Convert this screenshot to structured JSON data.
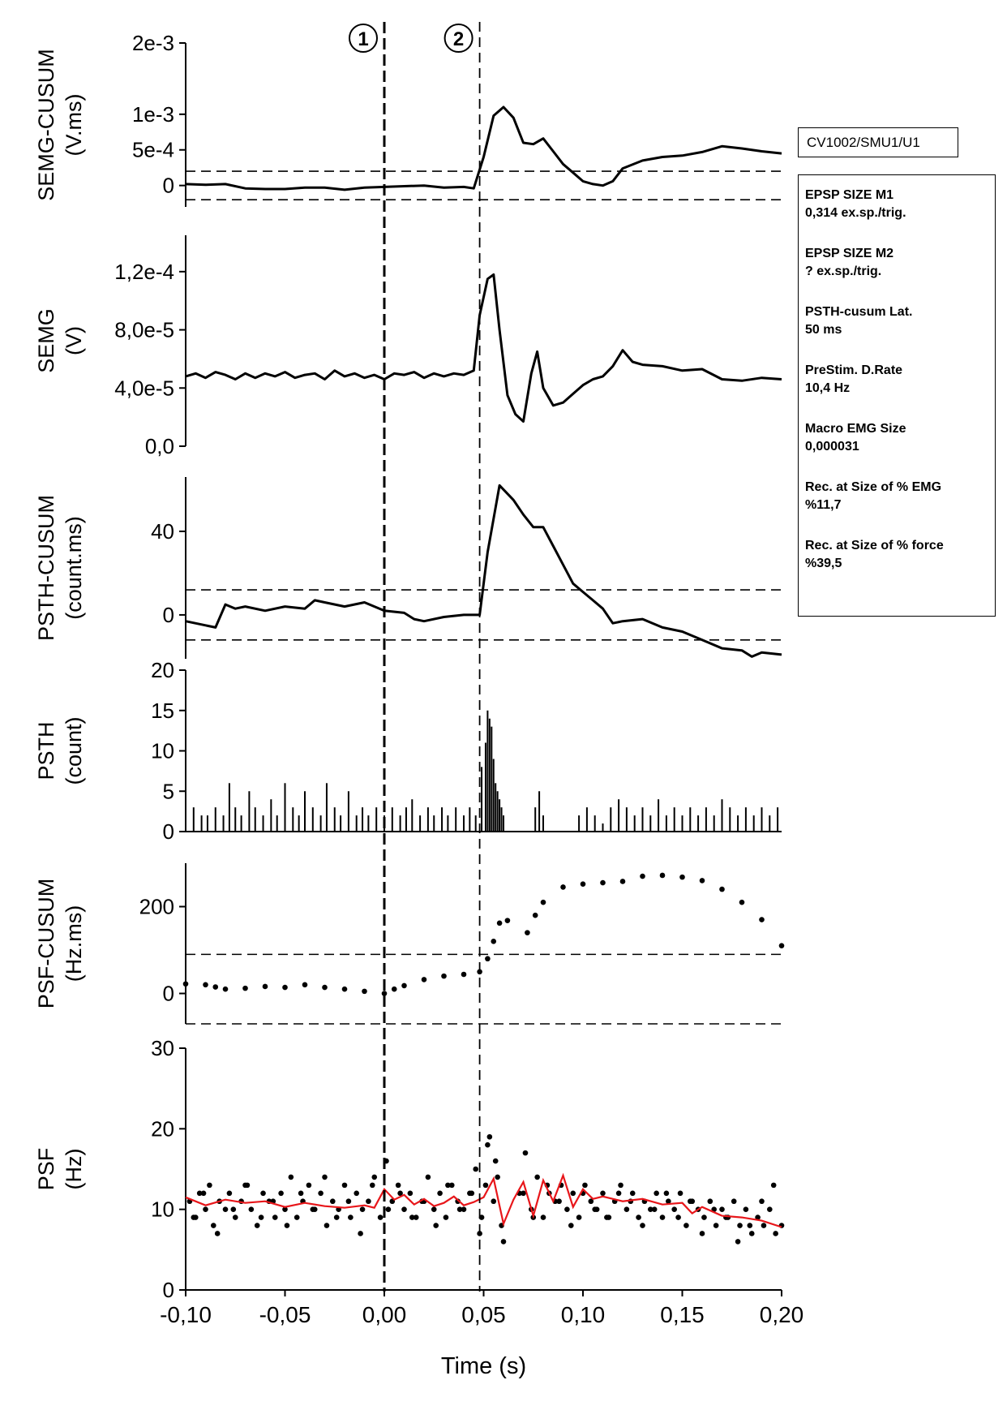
{
  "recording_id": "CV1002/SMU1/U1",
  "markers": [
    {
      "label": "1",
      "x": 0.0
    },
    {
      "label": "2",
      "x": 0.048
    }
  ],
  "info": [
    {
      "title": "EPSP SIZE M1",
      "value": "0,314 ex.sp./trig."
    },
    {
      "title": "EPSP SIZE M2",
      "value": "? ex.sp./trig."
    },
    {
      "title": "PSTH-cusum Lat.",
      "value": "50 ms"
    },
    {
      "title": "PreStim. D.Rate",
      "value": "10,4 Hz"
    },
    {
      "title": "Macro EMG Size",
      "value": "0,000031"
    },
    {
      "title": "Rec. at Size of % EMG",
      "value": "%11,7"
    },
    {
      "title": "Rec. at Size of % force",
      "value": "%39,5"
    }
  ],
  "chart_data": [
    {
      "type": "line",
      "ylabel": [
        "SEMG-CUSUM",
        "(V.ms)"
      ],
      "ylim": [
        -0.0003,
        0.002
      ],
      "yticks": [
        0,
        0.0005,
        0.001,
        0.002
      ],
      "yticklabels": [
        "0",
        "5e-4",
        "1e-3",
        "2e-3"
      ],
      "thresholds": [
        0.0002,
        -0.0002
      ],
      "x": [
        -0.1,
        -0.09,
        -0.08,
        -0.07,
        -0.06,
        -0.05,
        -0.04,
        -0.03,
        -0.02,
        -0.01,
        0.0,
        0.01,
        0.02,
        0.03,
        0.04,
        0.045,
        0.05,
        0.055,
        0.06,
        0.065,
        0.07,
        0.075,
        0.08,
        0.085,
        0.09,
        0.095,
        0.1,
        0.105,
        0.11,
        0.115,
        0.12,
        0.13,
        0.14,
        0.15,
        0.16,
        0.17,
        0.18,
        0.19,
        0.2
      ],
      "y": [
        2e-05,
        1e-05,
        2e-05,
        -4e-05,
        -5e-05,
        -5e-05,
        -3e-05,
        -3e-05,
        -6e-05,
        -3e-05,
        -2e-05,
        -1e-05,
        0.0,
        -3e-05,
        -2e-05,
        -4e-05,
        0.0004,
        0.00098,
        0.0011,
        0.00095,
        0.0006,
        0.00058,
        0.00066,
        0.00048,
        0.0003,
        0.00018,
        6e-05,
        2e-05,
        0.0,
        6e-05,
        0.00024,
        0.00035,
        0.0004,
        0.00042,
        0.00047,
        0.00055,
        0.00052,
        0.00048,
        0.00045
      ]
    },
    {
      "type": "line",
      "ylabel": [
        "SEMG",
        "(V)"
      ],
      "ylim": [
        0,
        0.000145
      ],
      "yticks": [
        0,
        4e-05,
        8e-05,
        0.00012
      ],
      "yticklabels": [
        "0,0",
        "4,0e-5",
        "8,0e-5",
        "1,2e-4"
      ],
      "x": [
        -0.1,
        -0.095,
        -0.09,
        -0.085,
        -0.08,
        -0.075,
        -0.07,
        -0.065,
        -0.06,
        -0.055,
        -0.05,
        -0.045,
        -0.04,
        -0.035,
        -0.03,
        -0.025,
        -0.02,
        -0.015,
        -0.01,
        -0.005,
        0.0,
        0.005,
        0.01,
        0.015,
        0.02,
        0.025,
        0.03,
        0.035,
        0.04,
        0.045,
        0.048,
        0.052,
        0.055,
        0.058,
        0.062,
        0.066,
        0.07,
        0.074,
        0.077,
        0.08,
        0.085,
        0.09,
        0.095,
        0.1,
        0.105,
        0.11,
        0.115,
        0.12,
        0.125,
        0.13,
        0.14,
        0.15,
        0.16,
        0.17,
        0.18,
        0.19,
        0.2
      ],
      "y": [
        4.8e-05,
        5e-05,
        4.7e-05,
        5.1e-05,
        4.9e-05,
        4.6e-05,
        5e-05,
        4.7e-05,
        5e-05,
        4.8e-05,
        5.1e-05,
        4.7e-05,
        4.9e-05,
        5e-05,
        4.6e-05,
        5.2e-05,
        4.8e-05,
        5e-05,
        4.7e-05,
        4.9e-05,
        4.6e-05,
        5e-05,
        4.9e-05,
        5.1e-05,
        4.7e-05,
        5e-05,
        4.8e-05,
        5e-05,
        4.9e-05,
        5.2e-05,
        9e-05,
        0.000115,
        0.000118,
        8e-05,
        3.5e-05,
        2.2e-05,
        1.7e-05,
        5e-05,
        6.5e-05,
        4e-05,
        2.8e-05,
        3e-05,
        3.6e-05,
        4.2e-05,
        4.6e-05,
        4.8e-05,
        5.5e-05,
        6.6e-05,
        5.8e-05,
        5.6e-05,
        5.5e-05,
        5.2e-05,
        5.3e-05,
        4.6e-05,
        4.5e-05,
        4.7e-05,
        4.6e-05
      ]
    },
    {
      "type": "line",
      "ylabel": [
        "PSTH-CUSUM",
        "(count.ms)"
      ],
      "ylim": [
        -21,
        66
      ],
      "yticks": [
        0,
        40
      ],
      "yticklabels": [
        "0",
        "40"
      ],
      "thresholds": [
        12,
        -12
      ],
      "x": [
        -0.1,
        -0.09,
        -0.085,
        -0.08,
        -0.075,
        -0.07,
        -0.06,
        -0.05,
        -0.04,
        -0.035,
        -0.03,
        -0.02,
        -0.01,
        0.0,
        0.01,
        0.015,
        0.02,
        0.03,
        0.04,
        0.048,
        0.052,
        0.058,
        0.065,
        0.07,
        0.075,
        0.08,
        0.085,
        0.09,
        0.095,
        0.1,
        0.105,
        0.11,
        0.115,
        0.12,
        0.13,
        0.14,
        0.15,
        0.16,
        0.17,
        0.18,
        0.185,
        0.19,
        0.2
      ],
      "y": [
        -3,
        -5,
        -6,
        5,
        3,
        4,
        2,
        4,
        3,
        7,
        6,
        4,
        6,
        2,
        1,
        -2,
        -3,
        -1,
        0,
        0,
        30,
        62,
        55,
        48,
        42,
        42,
        33,
        24,
        15,
        11,
        7,
        3,
        -4,
        -3,
        -2,
        -6,
        -8,
        -12,
        -16,
        -17,
        -20,
        -18,
        -19
      ]
    },
    {
      "type": "bar",
      "ylabel": [
        "PSTH",
        "(count)"
      ],
      "ylim": [
        0,
        20
      ],
      "yticks": [
        0,
        5,
        10,
        15,
        20
      ],
      "yticklabels": [
        "0",
        "5",
        "10",
        "15",
        "20"
      ],
      "x": [
        -0.096,
        -0.092,
        -0.089,
        -0.085,
        -0.081,
        -0.078,
        -0.075,
        -0.072,
        -0.068,
        -0.065,
        -0.061,
        -0.057,
        -0.054,
        -0.05,
        -0.046,
        -0.043,
        -0.04,
        -0.036,
        -0.032,
        -0.029,
        -0.025,
        -0.022,
        -0.018,
        -0.014,
        -0.011,
        -0.008,
        -0.004,
        0.0,
        0.004,
        0.008,
        0.011,
        0.014,
        0.018,
        0.022,
        0.025,
        0.029,
        0.032,
        0.036,
        0.04,
        0.043,
        0.046,
        0.049,
        0.051,
        0.052,
        0.053,
        0.054,
        0.055,
        0.056,
        0.057,
        0.058,
        0.059,
        0.06,
        0.076,
        0.078,
        0.08,
        0.098,
        0.102,
        0.106,
        0.11,
        0.114,
        0.118,
        0.122,
        0.126,
        0.13,
        0.134,
        0.138,
        0.142,
        0.146,
        0.15,
        0.154,
        0.158,
        0.162,
        0.166,
        0.17,
        0.174,
        0.178,
        0.182,
        0.186,
        0.19,
        0.194,
        0.198
      ],
      "y": [
        3,
        2,
        2,
        3,
        2,
        6,
        3,
        2,
        5,
        3,
        2,
        4,
        2,
        6,
        3,
        2,
        5,
        3,
        2,
        6,
        3,
        2,
        5,
        2,
        3,
        2,
        3,
        2,
        3,
        2,
        3,
        4,
        2,
        3,
        2,
        3,
        2,
        3,
        2,
        3,
        2,
        8,
        11,
        15,
        14,
        13,
        9,
        6,
        5,
        4,
        3,
        2,
        3,
        5,
        2,
        2,
        3,
        2,
        1,
        3,
        4,
        3,
        2,
        3,
        2,
        4,
        2,
        3,
        2,
        3,
        2,
        3,
        2,
        4,
        3,
        2,
        3,
        2,
        3,
        2,
        3
      ]
    },
    {
      "type": "scatter",
      "ylabel": [
        "PSF-CUSUM",
        "(Hz.ms)"
      ],
      "ylim": [
        -70,
        300
      ],
      "yticks": [
        0,
        200
      ],
      "yticklabels": [
        "0",
        "200"
      ],
      "thresholds": [
        90,
        -70
      ],
      "x": [
        -0.1,
        -0.09,
        -0.085,
        -0.08,
        -0.07,
        -0.06,
        -0.05,
        -0.04,
        -0.03,
        -0.02,
        -0.01,
        0.0,
        0.005,
        0.01,
        0.02,
        0.03,
        0.04,
        0.048,
        0.052,
        0.055,
        0.058,
        0.062,
        0.072,
        0.076,
        0.08,
        0.09,
        0.1,
        0.11,
        0.12,
        0.13,
        0.14,
        0.15,
        0.16,
        0.17,
        0.18,
        0.19,
        0.2
      ],
      "y": [
        22,
        20,
        15,
        10,
        12,
        16,
        14,
        20,
        14,
        10,
        5,
        0,
        10,
        18,
        32,
        40,
        44,
        50,
        80,
        120,
        162,
        168,
        140,
        180,
        210,
        245,
        252,
        255,
        258,
        270,
        272,
        268,
        260,
        240,
        210,
        170,
        110
      ]
    },
    {
      "type": "scatter",
      "ylabel": [
        "PSF",
        "(Hz)"
      ],
      "ylim": [
        0,
        30
      ],
      "yticks": [
        0,
        10,
        20,
        30
      ],
      "yticklabels": [
        "0",
        "10",
        "20",
        "30"
      ],
      "trend": {
        "color": "#e8161a",
        "x": [
          -0.1,
          -0.09,
          -0.08,
          -0.07,
          -0.06,
          -0.05,
          -0.04,
          -0.03,
          -0.02,
          -0.01,
          -0.005,
          0.0,
          0.005,
          0.01,
          0.015,
          0.02,
          0.025,
          0.03,
          0.035,
          0.04,
          0.045,
          0.05,
          0.055,
          0.06,
          0.065,
          0.07,
          0.075,
          0.08,
          0.085,
          0.09,
          0.095,
          0.1,
          0.105,
          0.11,
          0.12,
          0.13,
          0.14,
          0.15,
          0.155,
          0.16,
          0.17,
          0.18,
          0.19,
          0.2
        ],
        "y": [
          11.5,
          10.5,
          11.2,
          10.8,
          11.0,
          10.3,
          10.8,
          10.4,
          10.2,
          10.5,
          10.2,
          12.5,
          11.2,
          11.8,
          10.6,
          11.3,
          10.4,
          10.8,
          11.6,
          10.5,
          10.9,
          11.5,
          13.8,
          8.2,
          11.2,
          13.4,
          9.2,
          13.6,
          11.0,
          14.2,
          10.3,
          12.5,
          11.3,
          11.6,
          11.0,
          11.3,
          10.6,
          10.8,
          9.5,
          10.3,
          9.2,
          9.0,
          8.6,
          7.8
        ]
      },
      "x": [
        -0.098,
        -0.095,
        -0.093,
        -0.09,
        -0.088,
        -0.086,
        -0.083,
        -0.08,
        -0.078,
        -0.075,
        -0.072,
        -0.07,
        -0.067,
        -0.064,
        -0.061,
        -0.058,
        -0.055,
        -0.052,
        -0.05,
        -0.047,
        -0.044,
        -0.041,
        -0.038,
        -0.035,
        -0.032,
        -0.029,
        -0.026,
        -0.023,
        -0.02,
        -0.017,
        -0.014,
        -0.011,
        -0.008,
        -0.005,
        -0.002,
        0.001,
        0.004,
        0.007,
        0.01,
        0.013,
        0.016,
        0.019,
        0.022,
        0.025,
        0.028,
        0.031,
        0.034,
        0.037,
        0.04,
        0.043,
        0.046,
        0.049,
        0.051,
        0.053,
        0.055,
        0.057,
        0.059,
        0.068,
        0.071,
        0.074,
        0.077,
        0.08,
        0.083,
        0.086,
        0.089,
        0.092,
        0.095,
        0.098,
        0.101,
        0.104,
        0.107,
        0.11,
        0.113,
        0.116,
        0.119,
        0.122,
        0.125,
        0.128,
        0.131,
        0.134,
        0.137,
        0.14,
        0.143,
        0.146,
        0.149,
        0.152,
        0.155,
        0.158,
        0.161,
        0.164,
        0.167,
        0.17,
        0.173,
        0.176,
        0.179,
        0.182,
        0.185,
        0.188,
        0.191,
        0.194,
        0.197,
        0.2,
        -0.096,
        -0.091,
        -0.084,
        -0.076,
        -0.069,
        -0.062,
        -0.056,
        -0.049,
        -0.042,
        -0.036,
        -0.03,
        -0.024,
        -0.018,
        -0.012,
        -0.006,
        0.002,
        0.008,
        0.014,
        0.02,
        0.026,
        0.032,
        0.038,
        0.044,
        0.048,
        0.052,
        0.056,
        0.06,
        0.07,
        0.075,
        0.082,
        0.088,
        0.094,
        0.1,
        0.106,
        0.112,
        0.118,
        0.124,
        0.13,
        0.136,
        0.142,
        0.148,
        0.154,
        0.16,
        0.166,
        0.172,
        0.178,
        0.184,
        0.19,
        0.196
      ],
      "y": [
        11,
        9,
        12,
        10,
        13,
        8,
        11,
        10,
        12,
        9,
        11,
        13,
        10,
        8,
        12,
        11,
        9,
        12,
        10,
        14,
        9,
        11,
        13,
        10,
        12,
        8,
        11,
        10,
        13,
        9,
        12,
        10,
        11,
        14,
        9,
        16,
        11,
        13,
        10,
        12,
        9,
        11,
        14,
        10,
        12,
        9,
        13,
        11,
        10,
        12,
        15,
        9,
        13,
        19,
        11,
        14,
        8,
        12,
        17,
        10,
        14,
        9,
        12,
        11,
        13,
        10,
        12,
        9,
        13,
        11,
        10,
        12,
        9,
        11,
        13,
        10,
        12,
        9,
        11,
        10,
        12,
        9,
        11,
        10,
        12,
        8,
        11,
        10,
        9,
        11,
        8,
        10,
        9,
        11,
        8,
        10,
        7,
        9,
        8,
        10,
        7,
        8,
        9,
        12,
        7,
        10,
        13,
        9,
        11,
        8,
        12,
        10,
        14,
        9,
        11,
        7,
        13,
        10,
        12,
        9,
        11,
        8,
        13,
        10,
        12,
        7,
        18,
        16,
        6,
        12,
        9,
        13,
        11,
        8,
        12,
        10,
        9,
        12,
        11,
        8,
        10,
        12,
        9,
        11,
        7,
        10,
        9,
        6,
        8,
        11,
        13
      ]
    }
  ],
  "xaxis": {
    "label": "Time (s)",
    "lim": [
      -0.1,
      0.2
    ],
    "ticks": [
      -0.1,
      -0.05,
      0.0,
      0.05,
      0.1,
      0.15,
      0.2
    ],
    "ticklabels": [
      "-0,10",
      "-0,05",
      "0,00",
      "0,05",
      "0,10",
      "0,15",
      "0,20"
    ]
  }
}
